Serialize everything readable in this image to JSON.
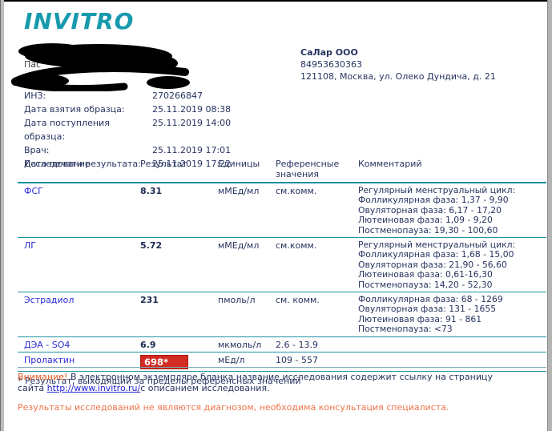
{
  "page": {
    "logo": "INVITRO",
    "partial_redacted_label": "Пас",
    "redaction_icon": "black-scribble-redaction",
    "company": {
      "name": "СаЛар ООО",
      "phone": "84953630363",
      "address": "121108, Москва, ул. Олеко Дундича, д. 21"
    },
    "meta": [
      {
        "label": "ИНЗ:",
        "value": "270266847"
      },
      {
        "label": "Дата взятия образца:",
        "value": "25.11.2019 08:38"
      },
      {
        "label": "Дата поступления образца:",
        "value": "25.11.2019 14:00"
      },
      {
        "label": "Врач:",
        "value": "25.11.2019 17:01"
      },
      {
        "label": "Дата печати результата:",
        "value": "25.11.2019 17:22"
      }
    ],
    "table": {
      "headers": [
        "Исследование",
        "Результат",
        "Единицы",
        "Референсные значения",
        "Комментарий"
      ],
      "rows": [
        {
          "name": "ФСГ",
          "result": "8.31",
          "units": "мМЕд/мл",
          "reference": "см.комм.",
          "flagged": false,
          "comment": [
            "Регулярный менструальный цикл:",
            "Фолликулярная фаза: 1,37 - 9,90",
            "Овуляторная фаза: 6,17 - 17,20",
            "Лютеиновая фаза: 1,09 - 9,20",
            "Постменопауза: 19,30 - 100,60"
          ]
        },
        {
          "name": "ЛГ",
          "result": "5.72",
          "units": "мМЕд/мл",
          "reference": "см.комм.",
          "flagged": false,
          "comment": [
            "Регулярный менструальный цикл:",
            "Фолликулярная фаза: 1,68 - 15,00",
            "Овуляторная фаза: 21,90 - 56,60",
            "Лютеиновая фаза: 0,61-16,30",
            "Постменопауза: 14,20 - 52,30"
          ]
        },
        {
          "name": "Эстрадиол",
          "result": "231",
          "units": "пмоль/л",
          "reference": "см. комм.",
          "flagged": false,
          "comment": [
            "Фолликулярная фаза: 68 - 1269",
            "Овуляторная фаза: 131 - 1655",
            "Лютеиновая фаза: 91 - 861",
            "Постменопауза: <73"
          ]
        },
        {
          "name": "ДЭА - SO4",
          "result": "6.9",
          "units": "мкмоль/л",
          "reference": "2.6 - 13.9",
          "flagged": false,
          "comment": []
        },
        {
          "name": "Пролактин",
          "result": "698*",
          "units": "мЕд/л",
          "reference": "109 - 557",
          "flagged": true,
          "comment": []
        }
      ],
      "footnote": "* Результат, выходящий за пределы референсных значений"
    },
    "warning": {
      "prefix": "Внимание!",
      "text_before_link": " В электронном экземпляре бланка название исследования содержит ссылку на страницу сайта ",
      "link": "http://www.invitro.ru/",
      "text_after_link": "с описанием исследования."
    },
    "disclaimer": "Результаты исследований не являются диагнозом, необходима консультация специалиста.",
    "colors": {
      "brand_teal": "#189aae",
      "rule_teal": "#1b93a5",
      "link_blue": "#2b2bd5",
      "flag_red": "#d22b23",
      "warning_orange": "#e8571f",
      "disclaimer_orange": "#ef744b",
      "text_navy": "#27335f"
    }
  }
}
